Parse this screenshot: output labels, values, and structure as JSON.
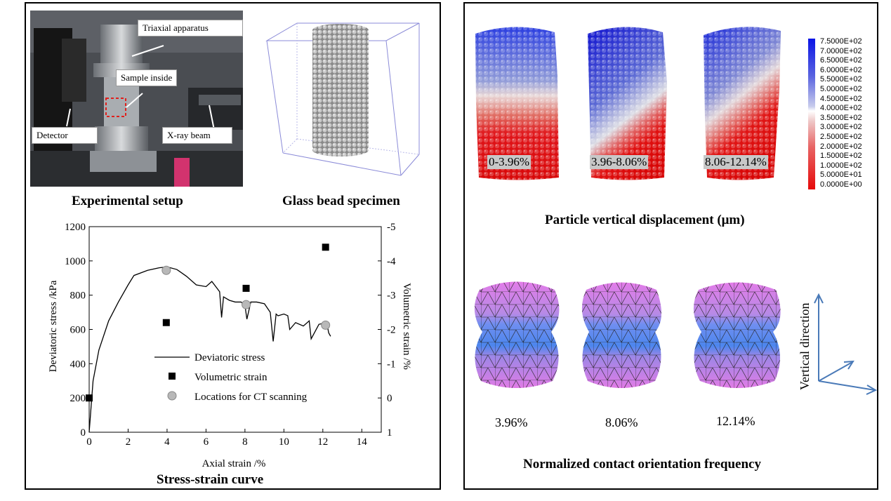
{
  "left_panel": {
    "setup": {
      "caption": "Experimental setup",
      "callouts": [
        "Triaxial apparatus",
        "Sample inside",
        "Detector",
        "X-ray beam"
      ]
    },
    "specimen": {
      "caption": "Glass bead specimen"
    },
    "curve_caption": "Stress-strain curve"
  },
  "right_panel": {
    "displacement": {
      "caption": "Particle vertical displacement (μm)",
      "stages": [
        "0-3.96%",
        "3.96-8.06%",
        "8.06-12.14%"
      ],
      "colorbar_labels": [
        "7.5000E+02",
        "7.0000E+02",
        "6.5000E+02",
        "6.0000E+02",
        "5.5000E+02",
        "5.0000E+02",
        "4.5000E+02",
        "4.0000E+02",
        "3.5000E+02",
        "3.0000E+02",
        "2.5000E+02",
        "2.0000E+02",
        "1.5000E+02",
        "1.0000E+02",
        "5.0000E+01",
        "0.0000E+00"
      ]
    },
    "orientation": {
      "caption": "Normalized contact orientation frequency",
      "stages": [
        "3.96%",
        "8.06%",
        "12.14%"
      ],
      "axis_label": "Vertical direction"
    }
  },
  "chart_data": {
    "type": "line",
    "xlabel": "Axial strain /%",
    "ylabel": "Deviatoric stress /kPa",
    "y2label": "Volumetric strain /%",
    "xlim": [
      0,
      15
    ],
    "ylim": [
      0,
      1200
    ],
    "y2lim": [
      1,
      -5
    ],
    "xticks": [
      "0",
      "2",
      "4",
      "6",
      "8",
      "10",
      "12",
      "14"
    ],
    "yticks": [
      "0",
      "200",
      "400",
      "600",
      "800",
      "1000",
      "1200"
    ],
    "y2ticks": [
      "1",
      "0",
      "-1",
      "-2",
      "-3",
      "-4",
      "-5"
    ],
    "legend": [
      "Deviatoric stress",
      "Volumetric strain",
      "Locations for CT scanning"
    ],
    "series": [
      {
        "name": "Deviatoric stress",
        "kind": "line",
        "x": [
          0,
          0.2,
          0.5,
          1,
          1.5,
          2,
          2.3,
          3,
          3.6,
          4,
          4.5,
          5,
          5.5,
          6,
          6.3,
          6.7,
          6.8,
          6.9,
          7.2,
          7.5,
          7.8,
          8,
          8.1,
          8.3,
          8.6,
          9,
          9.3,
          9.45,
          9.6,
          9.7,
          10,
          10.2,
          10.3,
          10.6,
          11,
          11.3,
          11.4,
          11.8,
          12,
          12.2,
          12.3,
          12.4
        ],
        "y": [
          0,
          300,
          480,
          650,
          760,
          860,
          915,
          945,
          960,
          965,
          950,
          910,
          860,
          850,
          880,
          820,
          670,
          790,
          770,
          760,
          760,
          740,
          660,
          760,
          760,
          750,
          700,
          530,
          690,
          680,
          690,
          680,
          600,
          640,
          620,
          650,
          545,
          630,
          635,
          640,
          580,
          560
        ]
      },
      {
        "name": "Volumetric strain",
        "kind": "marker",
        "x": [
          0,
          3.96,
          8.06,
          12.14
        ],
        "y": [
          0,
          -2.2,
          -3.2,
          -4.4
        ]
      },
      {
        "name": "Locations for CT scanning",
        "kind": "marker",
        "x": [
          3.96,
          8.06,
          12.14
        ],
        "y": [
          945,
          745,
          625
        ]
      }
    ]
  }
}
